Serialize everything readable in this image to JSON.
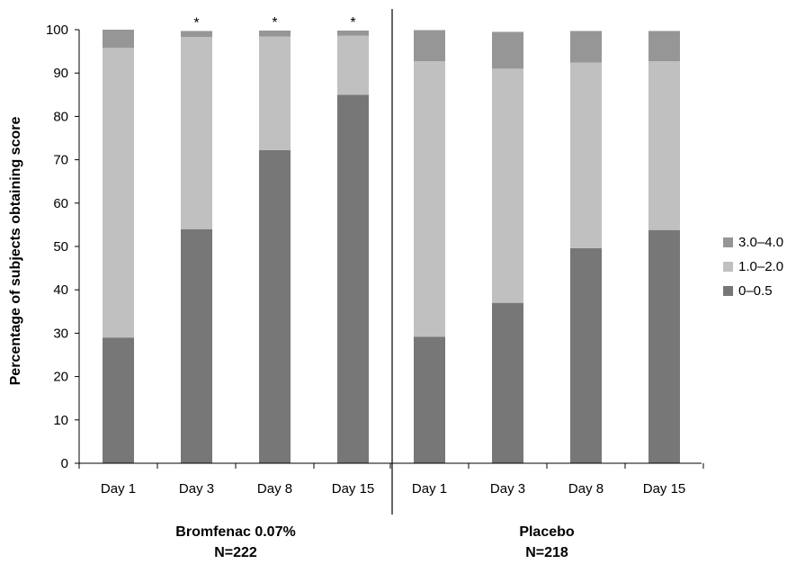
{
  "chart_data": {
    "type": "bar",
    "stacked": true,
    "ylabel": "Percentage of subjects obtaining score",
    "ylim": [
      0,
      100
    ],
    "yticks": [
      0,
      10,
      20,
      30,
      40,
      50,
      60,
      70,
      80,
      90,
      100
    ],
    "grid": false,
    "legend_position": "right",
    "groups": [
      {
        "label_line1": "Bromfenac 0.07%",
        "label_line2": "N=222",
        "categories": [
          "Day 1",
          "Day 3",
          "Day 8",
          "Day 15"
        ],
        "annotations": [
          "",
          "*",
          "*",
          "*"
        ],
        "series": [
          {
            "name": "0–0.5",
            "values": [
              29,
              54,
              72.2,
              85
            ]
          },
          {
            "name": "1.0–2.0",
            "values": [
              66.8,
              44.3,
              26.2,
              13.6
            ]
          },
          {
            "name": "3.0–4.0",
            "values": [
              4.2,
              1.4,
              1.4,
              1.2
            ]
          }
        ]
      },
      {
        "label_line1": "Placebo",
        "label_line2": "N=218",
        "categories": [
          "Day 1",
          "Day 3",
          "Day 8",
          "Day 15"
        ],
        "annotations": [
          "",
          "",
          "",
          ""
        ],
        "series": [
          {
            "name": "0–0.5",
            "values": [
              29.2,
              37,
              49.6,
              53.8
            ]
          },
          {
            "name": "1.0–2.0",
            "values": [
              63.5,
              54,
              42.8,
              38.9
            ]
          },
          {
            "name": "3.0–4.0",
            "values": [
              7.2,
              8.5,
              7.3,
              7
            ]
          }
        ]
      }
    ],
    "legend": [
      {
        "name": "3.0–4.0",
        "color": "#969696"
      },
      {
        "name": "1.0–2.0",
        "color": "#c0c0c0"
      },
      {
        "name": "0–0.5",
        "color": "#777777"
      }
    ],
    "colors": {
      "0–0.5": "#777777",
      "1.0–2.0": "#c0c0c0",
      "3.0–4.0": "#969696"
    }
  }
}
